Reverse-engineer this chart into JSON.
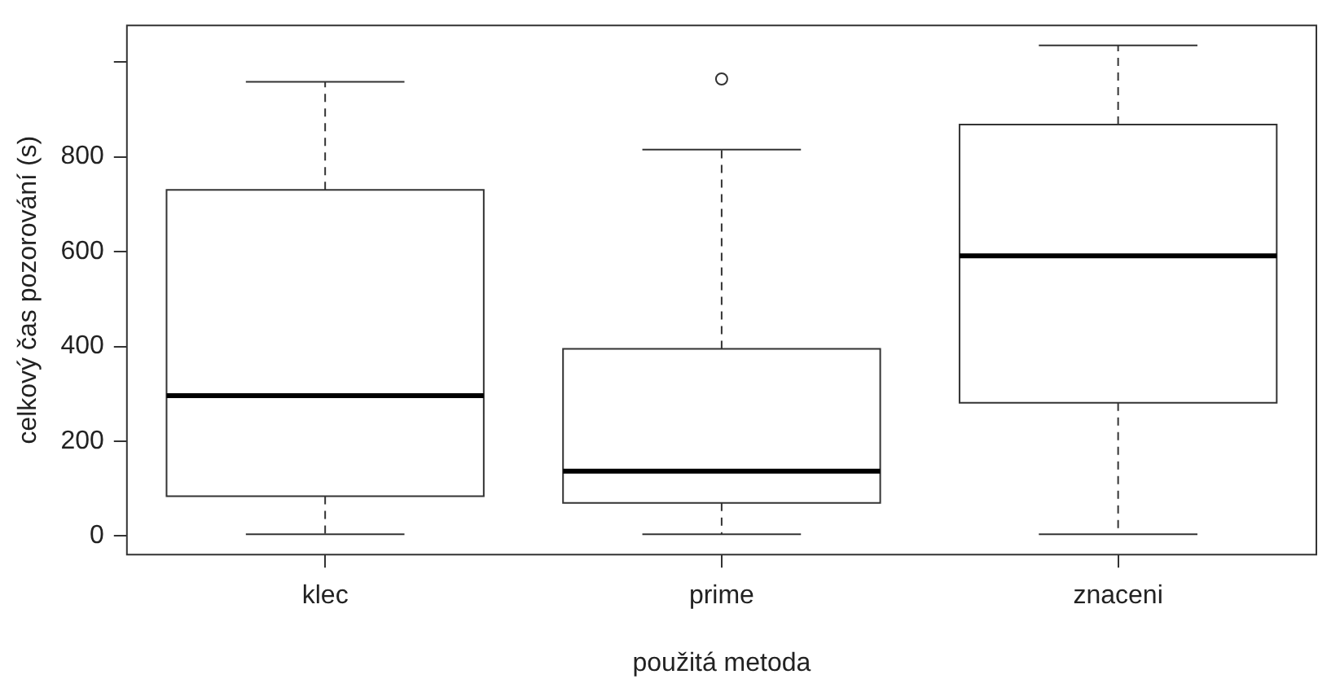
{
  "chart_data": {
    "type": "box",
    "xlabel": "použitá metoda",
    "ylabel": "celkový čas pozorování (s)",
    "categories": [
      "klec",
      "prime",
      "znaceni"
    ],
    "boxes": [
      {
        "low": 4,
        "q1": 84,
        "median": 296,
        "q3": 730,
        "high": 958
      },
      {
        "low": 4,
        "q1": 70,
        "median": 137,
        "q3": 395,
        "high": 815,
        "outliers": [
          964
        ]
      },
      {
        "low": 4,
        "q1": 281,
        "median": 591,
        "q3": 868,
        "high": 1035
      }
    ],
    "ylim": [
      -39,
      1077
    ],
    "yticks": [
      0,
      200,
      400,
      600,
      800,
      {
        "value": 1000,
        "label": null
      }
    ],
    "grid": false
  }
}
